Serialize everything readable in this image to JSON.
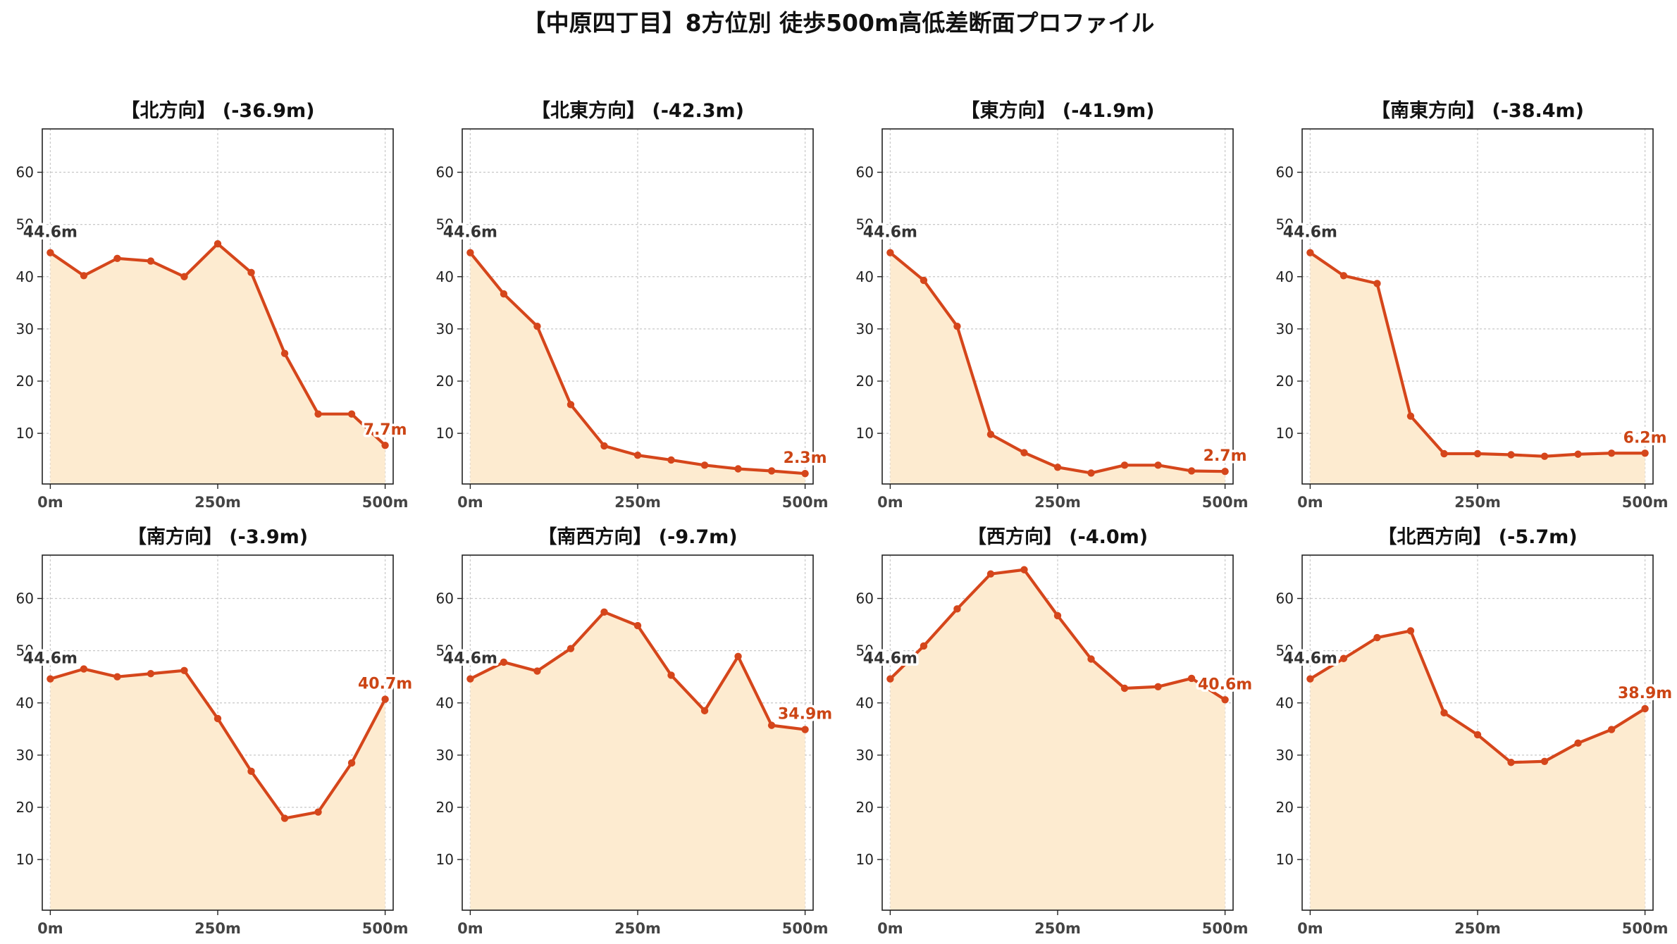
{
  "title": "【中原四丁目】8方位別 徒歩500m高低差断面プロファイル",
  "colors": {
    "line": "#d5461b",
    "fill": "#fdebd0",
    "grid": "#c8c8c8",
    "end_label": "#cc4515",
    "start_label": "#333333"
  },
  "chart_data": [
    {
      "type": "area",
      "title": "【北方向】 (-36.9m)",
      "x": [
        0,
        50,
        100,
        150,
        200,
        250,
        300,
        350,
        400,
        450,
        500
      ],
      "values": [
        44.6,
        40.2,
        43.5,
        43.0,
        40.0,
        46.3,
        40.8,
        25.3,
        13.7,
        13.7,
        7.7
      ],
      "start_label": "44.6m",
      "end_label": "7.7m",
      "xticks": [
        0,
        250,
        500
      ],
      "xtick_labels": [
        "0m",
        "250m",
        "500m"
      ],
      "yticks": [
        10,
        20,
        30,
        40,
        50,
        60
      ],
      "ylim": [
        0.3,
        68.3
      ],
      "xlim": [
        -12,
        512
      ],
      "grid": true
    },
    {
      "type": "area",
      "title": "【北東方向】 (-42.3m)",
      "x": [
        0,
        50,
        100,
        150,
        200,
        250,
        300,
        350,
        400,
        450,
        500
      ],
      "values": [
        44.6,
        36.7,
        30.5,
        15.5,
        7.6,
        5.8,
        4.9,
        3.9,
        3.2,
        2.8,
        2.3
      ],
      "start_label": "44.6m",
      "end_label": "2.3m",
      "xticks": [
        0,
        250,
        500
      ],
      "xtick_labels": [
        "0m",
        "250m",
        "500m"
      ],
      "yticks": [
        10,
        20,
        30,
        40,
        50,
        60
      ],
      "ylim": [
        0.3,
        68.3
      ],
      "xlim": [
        -12,
        512
      ],
      "grid": true
    },
    {
      "type": "area",
      "title": "【東方向】 (-41.9m)",
      "x": [
        0,
        50,
        100,
        150,
        200,
        250,
        300,
        350,
        400,
        450,
        500
      ],
      "values": [
        44.6,
        39.3,
        30.5,
        9.8,
        6.3,
        3.5,
        2.4,
        3.9,
        3.9,
        2.8,
        2.7
      ],
      "start_label": "44.6m",
      "end_label": "2.7m",
      "xticks": [
        0,
        250,
        500
      ],
      "xtick_labels": [
        "0m",
        "250m",
        "500m"
      ],
      "yticks": [
        10,
        20,
        30,
        40,
        50,
        60
      ],
      "ylim": [
        0.3,
        68.3
      ],
      "xlim": [
        -12,
        512
      ],
      "grid": true
    },
    {
      "type": "area",
      "title": "【南東方向】 (-38.4m)",
      "x": [
        0,
        50,
        100,
        150,
        200,
        250,
        300,
        350,
        400,
        450,
        500
      ],
      "values": [
        44.6,
        40.2,
        38.7,
        13.3,
        6.1,
        6.1,
        5.9,
        5.6,
        6.0,
        6.2,
        6.2
      ],
      "start_label": "44.6m",
      "end_label": "6.2m",
      "xticks": [
        0,
        250,
        500
      ],
      "xtick_labels": [
        "0m",
        "250m",
        "500m"
      ],
      "yticks": [
        10,
        20,
        30,
        40,
        50,
        60
      ],
      "ylim": [
        0.3,
        68.3
      ],
      "xlim": [
        -12,
        512
      ],
      "grid": true
    },
    {
      "type": "area",
      "title": "【南方向】 (-3.9m)",
      "x": [
        0,
        50,
        100,
        150,
        200,
        250,
        300,
        350,
        400,
        450,
        500
      ],
      "values": [
        44.6,
        46.5,
        45.0,
        45.6,
        46.2,
        37.0,
        26.9,
        17.9,
        19.1,
        28.5,
        40.7
      ],
      "start_label": "44.6m",
      "end_label": "40.7m",
      "xticks": [
        0,
        250,
        500
      ],
      "xtick_labels": [
        "0m",
        "250m",
        "500m"
      ],
      "yticks": [
        10,
        20,
        30,
        40,
        50,
        60
      ],
      "ylim": [
        0.3,
        68.3
      ],
      "xlim": [
        -12,
        512
      ],
      "grid": true
    },
    {
      "type": "area",
      "title": "【南西方向】 (-9.7m)",
      "x": [
        0,
        50,
        100,
        150,
        200,
        250,
        300,
        350,
        400,
        450,
        500
      ],
      "values": [
        44.6,
        47.8,
        46.1,
        50.4,
        57.4,
        54.8,
        45.3,
        38.5,
        48.9,
        35.7,
        34.9
      ],
      "start_label": "44.6m",
      "end_label": "34.9m",
      "xticks": [
        0,
        250,
        500
      ],
      "xtick_labels": [
        "0m",
        "250m",
        "500m"
      ],
      "yticks": [
        10,
        20,
        30,
        40,
        50,
        60
      ],
      "ylim": [
        0.3,
        68.3
      ],
      "xlim": [
        -12,
        512
      ],
      "grid": true
    },
    {
      "type": "area",
      "title": "【西方向】 (-4.0m)",
      "x": [
        0,
        50,
        100,
        150,
        200,
        250,
        300,
        350,
        400,
        450,
        500
      ],
      "values": [
        44.6,
        50.9,
        58.0,
        64.7,
        65.5,
        56.7,
        48.4,
        42.8,
        43.1,
        44.7,
        40.6
      ],
      "start_label": "44.6m",
      "end_label": "40.6m",
      "xticks": [
        0,
        250,
        500
      ],
      "xtick_labels": [
        "0m",
        "250m",
        "500m"
      ],
      "yticks": [
        10,
        20,
        30,
        40,
        50,
        60
      ],
      "ylim": [
        0.3,
        68.3
      ],
      "xlim": [
        -12,
        512
      ],
      "grid": true
    },
    {
      "type": "area",
      "title": "【北西方向】 (-5.7m)",
      "x": [
        0,
        50,
        100,
        150,
        200,
        250,
        300,
        350,
        400,
        450,
        500
      ],
      "values": [
        44.6,
        48.5,
        52.5,
        53.8,
        38.1,
        33.9,
        28.6,
        28.8,
        32.3,
        34.9,
        38.9
      ],
      "start_label": "44.6m",
      "end_label": "38.9m",
      "xticks": [
        0,
        250,
        500
      ],
      "xtick_labels": [
        "0m",
        "250m",
        "500m"
      ],
      "yticks": [
        10,
        20,
        30,
        40,
        50,
        60
      ],
      "ylim": [
        0.3,
        68.3
      ],
      "xlim": [
        -12,
        512
      ],
      "grid": true
    }
  ]
}
